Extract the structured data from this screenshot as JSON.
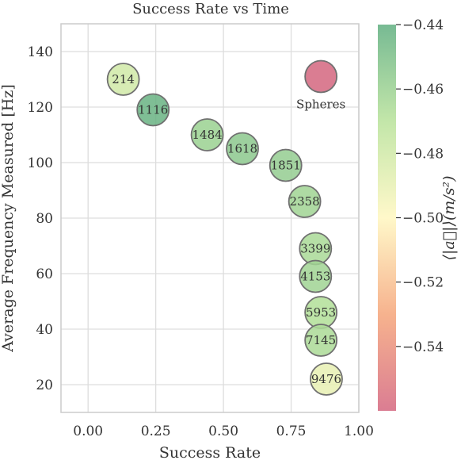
{
  "chart_data": {
    "type": "scatter",
    "title": "Success Rate vs Time",
    "xlabel": "Success Rate",
    "ylabel": "Average Frequency Measured [Hz]",
    "xlim": [
      -0.1,
      1.0
    ],
    "ylim": [
      10,
      150
    ],
    "xticks": [
      "0.00",
      "0.25",
      "0.50",
      "0.75",
      "1.00"
    ],
    "yticks": [
      "20",
      "40",
      "60",
      "80",
      "100",
      "120",
      "140"
    ],
    "grid": true,
    "points": [
      {
        "label": "214",
        "x": 0.13,
        "y": 130,
        "c": -0.48
      },
      {
        "label": "1116",
        "x": 0.24,
        "y": 119,
        "c": -0.443
      },
      {
        "label": "1484",
        "x": 0.44,
        "y": 110,
        "c": -0.46
      },
      {
        "label": "1618",
        "x": 0.57,
        "y": 105,
        "c": -0.455
      },
      {
        "label": "1851",
        "x": 0.73,
        "y": 99,
        "c": -0.458
      },
      {
        "label": "2358",
        "x": 0.8,
        "y": 86,
        "c": -0.462
      },
      {
        "label": "3399",
        "x": 0.84,
        "y": 69,
        "c": -0.465
      },
      {
        "label": "4153",
        "x": 0.84,
        "y": 59,
        "c": -0.462
      },
      {
        "label": "5953",
        "x": 0.86,
        "y": 46,
        "c": -0.468
      },
      {
        "label": "7145",
        "x": 0.86,
        "y": 36,
        "c": -0.466
      },
      {
        "label": "9476",
        "x": 0.88,
        "y": 22,
        "c": -0.49
      },
      {
        "label": "",
        "x": 0.86,
        "y": 131,
        "c": -0.56,
        "annotation": "Spheres"
      }
    ],
    "colorbar": {
      "label": "⟨|a⃗|⟩(m/s²)",
      "range": [
        -0.56,
        -0.44
      ],
      "ticks": [
        "−0.44",
        "−0.46",
        "−0.48",
        "−0.50",
        "−0.52",
        "−0.54"
      ],
      "colormap": "RdYlGn",
      "colors": [
        "#d4667f",
        "#f5a57a",
        "#fff7c0",
        "#b8e29a",
        "#5fae80"
      ]
    }
  }
}
